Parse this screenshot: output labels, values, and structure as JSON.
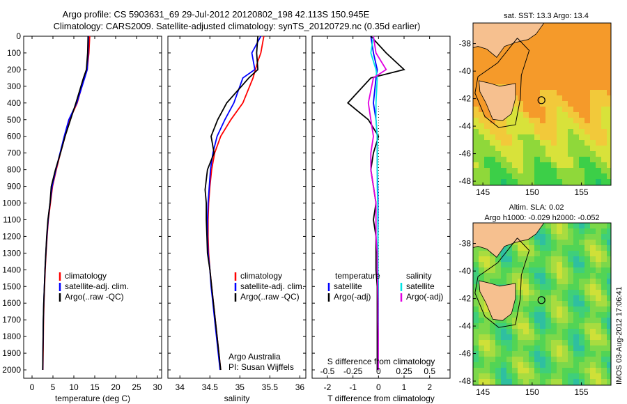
{
  "title_line1": "Argo profile: CS 5903631_69 29-Jul-2012 20120802_198 42.113S 150.945E",
  "title_line2": "Climatology: CARS2009. Satellite-adjusted climatology: synTS_20120729.nc (0.35d earlier)",
  "map_top_title": "sat. SST: 13.3 Argo: 13.4",
  "map_bottom_title1": "Altim. SLA: 0.02",
  "map_bottom_title2": "Argo h1000: -0.029 h2000: -0.052",
  "vertical_stamp": "IMOS 03-Aug-2012 17:06:41",
  "credit_line1": "Argo Australia",
  "credit_line2": "PI: Susan Wijffels",
  "colors": {
    "climatology": "#ff0000",
    "satellite": "#0000ff",
    "argo": "#000000",
    "sal_sat": "#00e5e5",
    "sal_argo": "#e000e0",
    "land": "#f6c08f"
  },
  "chart_data": [
    {
      "id": "temperature",
      "type": "line",
      "xlabel": "temperature (deg C)",
      "xlim": [
        -2,
        31
      ],
      "ylim": [
        2050,
        0
      ],
      "xticks": [
        0,
        5,
        10,
        15,
        20,
        25,
        30
      ],
      "yticks": [
        0,
        100,
        200,
        300,
        400,
        500,
        600,
        700,
        800,
        900,
        1000,
        1100,
        1200,
        1300,
        1400,
        1500,
        1600,
        1700,
        1800,
        1900,
        2000
      ],
      "legend": [
        "climatology",
        "satellite-adj. clim.",
        "Argo(..raw -QC)"
      ],
      "series": [
        {
          "name": "climatology",
          "color": "#ff0000",
          "x": [
            13.8,
            13.6,
            13.2,
            12.5,
            10.8,
            9.0,
            7.9,
            6.8,
            5.8,
            4.9,
            4.4,
            3.9,
            3.6,
            3.35,
            3.15,
            3.0,
            2.85,
            2.75,
            2.7,
            2.65,
            2.6
          ],
          "y": [
            0,
            100,
            200,
            250,
            400,
            500,
            600,
            700,
            800,
            900,
            1000,
            1100,
            1200,
            1300,
            1400,
            1500,
            1600,
            1700,
            1800,
            1900,
            2000
          ]
        },
        {
          "name": "satellite-adj. clim.",
          "color": "#0000ff",
          "x": [
            13.5,
            13.4,
            13.2,
            12.6,
            10.7,
            8.8,
            7.7,
            6.7,
            5.7,
            4.8,
            4.3,
            3.85,
            3.55,
            3.3,
            3.1,
            2.95,
            2.8,
            2.7,
            2.65,
            2.6,
            2.55
          ],
          "y": [
            0,
            100,
            200,
            250,
            400,
            500,
            600,
            700,
            800,
            900,
            1000,
            1100,
            1200,
            1300,
            1400,
            1500,
            1600,
            1700,
            1800,
            1900,
            2000
          ]
        },
        {
          "name": "Argo(..raw -QC)",
          "color": "#000000",
          "x": [
            13.4,
            13.3,
            13.0,
            12.3,
            10.5,
            9.2,
            7.9,
            6.8,
            5.6,
            4.6,
            4.3,
            3.8,
            3.5,
            3.3,
            3.1,
            2.95,
            2.8,
            2.7,
            2.65,
            2.6,
            2.55
          ],
          "y": [
            0,
            100,
            200,
            250,
            400,
            500,
            600,
            700,
            800,
            900,
            1000,
            1100,
            1200,
            1300,
            1400,
            1500,
            1600,
            1700,
            1800,
            1900,
            2000
          ]
        }
      ]
    },
    {
      "id": "salinity",
      "type": "line",
      "xlabel": "salinity",
      "xlim": [
        33.8,
        36.1
      ],
      "ylim": [
        2050,
        0
      ],
      "xticks": [
        34,
        34.5,
        35,
        35.5,
        36
      ],
      "xticklabels": [
        "34",
        "34.5",
        "35",
        "35.5",
        "36"
      ],
      "legend": [
        "climatology",
        "satellite-adj. clim.",
        "Argo(..raw -QC)"
      ],
      "series": [
        {
          "name": "climatology",
          "color": "#ff0000",
          "x": [
            35.4,
            35.35,
            35.3,
            35.22,
            35.05,
            34.85,
            34.68,
            34.58,
            34.53,
            34.5,
            34.48,
            34.47,
            34.47,
            34.48,
            34.5,
            34.53,
            34.56,
            34.59,
            34.62,
            34.65,
            34.68
          ],
          "y": [
            0,
            100,
            150,
            250,
            400,
            500,
            600,
            700,
            800,
            900,
            1000,
            1100,
            1200,
            1300,
            1400,
            1500,
            1600,
            1700,
            1800,
            1900,
            2000
          ]
        },
        {
          "name": "satellite-adj. clim.",
          "color": "#0000ff",
          "x": [
            35.35,
            35.2,
            35.25,
            35.05,
            34.9,
            34.75,
            34.62,
            34.55,
            34.51,
            34.49,
            34.47,
            34.46,
            34.46,
            34.47,
            34.5,
            34.52,
            34.55,
            34.58,
            34.61,
            34.64,
            34.67
          ],
          "y": [
            0,
            100,
            200,
            250,
            400,
            500,
            600,
            700,
            800,
            900,
            1000,
            1100,
            1200,
            1300,
            1400,
            1500,
            1600,
            1700,
            1800,
            1900,
            2000
          ]
        },
        {
          "name": "Argo(..raw -QC)",
          "color": "#000000",
          "x": [
            35.3,
            35.28,
            35.3,
            35.15,
            34.78,
            34.63,
            34.52,
            34.57,
            34.46,
            34.42,
            34.44,
            34.44,
            34.45,
            34.46,
            34.5,
            34.53,
            34.56,
            34.59,
            34.62,
            34.65,
            34.68
          ],
          "y": [
            0,
            100,
            200,
            250,
            400,
            500,
            600,
            700,
            800,
            920,
            1000,
            1100,
            1200,
            1300,
            1400,
            1500,
            1600,
            1700,
            1800,
            1900,
            2000
          ]
        }
      ]
    },
    {
      "id": "difference",
      "type": "line",
      "xlabel": "T difference from climatology",
      "xlabel2": "S difference from climatology",
      "xlim": [
        -2.6,
        2.8
      ],
      "ylim": [
        2050,
        0
      ],
      "xticks": [
        -2,
        -1,
        0,
        1,
        2
      ],
      "xticks2": [
        -0.5,
        -0.25,
        0,
        0.25,
        0.5
      ],
      "xticklabels2": [
        "-0.5",
        "-0.25",
        "0",
        "0.25",
        "0.5"
      ],
      "legend_headers": [
        "temperature",
        "salinity"
      ],
      "legend": [
        "satellite",
        "Argo(-adj)",
        "satellite",
        "Argo(-adj)"
      ],
      "series": [
        {
          "name": "satellite",
          "color": "#0000ff",
          "x": [
            -0.3,
            -0.2,
            -0.05,
            -0.1,
            -0.2,
            -0.1,
            -0.05,
            -0.05,
            -0.05,
            -0.03,
            -0.02,
            -0.02,
            -0.02,
            -0.02,
            -0.02,
            -0.01,
            -0.01,
            -0.01,
            -0.01,
            -0.01,
            -0.01
          ],
          "y": [
            0,
            100,
            200,
            250,
            400,
            500,
            600,
            700,
            800,
            900,
            1000,
            1100,
            1200,
            1300,
            1400,
            1500,
            1600,
            1700,
            1800,
            1900,
            2000
          ]
        },
        {
          "name": "Argo(-adj)",
          "color": "#000000",
          "x": [
            -0.3,
            0.3,
            1.0,
            -0.3,
            -1.2,
            -0.4,
            0.0,
            -0.2,
            -0.3,
            -0.2,
            -0.1,
            -0.2,
            -0.1,
            -0.1,
            -0.1,
            -0.05,
            -0.05,
            -0.05,
            -0.05,
            -0.05,
            -0.05
          ],
          "y": [
            0,
            100,
            200,
            250,
            400,
            500,
            600,
            700,
            800,
            900,
            1000,
            1100,
            1200,
            1300,
            1400,
            1500,
            1600,
            1700,
            1800,
            1900,
            2000
          ]
        },
        {
          "name": "satellite",
          "color": "#00e5e5",
          "x": [
            -0.2,
            -0.3,
            -0.1,
            -0.05,
            -0.1,
            -0.1,
            -0.05,
            -0.05,
            -0.05,
            -0.05,
            -0.03,
            -0.03,
            -0.02,
            -0.02,
            -0.02,
            -0.01,
            -0.01,
            -0.01,
            -0.01,
            -0.01,
            -0.01
          ],
          "y": [
            0,
            100,
            200,
            250,
            400,
            500,
            600,
            700,
            800,
            900,
            1000,
            1100,
            1200,
            1300,
            1400,
            1500,
            1600,
            1700,
            1800,
            1900,
            2000
          ]
        },
        {
          "name": "Argo(-adj)",
          "color": "#e000e0",
          "x": [
            -0.2,
            -0.1,
            0.3,
            -0.2,
            -0.4,
            -0.3,
            -0.2,
            -0.3,
            -0.3,
            -0.2,
            -0.1,
            -0.1,
            -0.1,
            -0.05,
            -0.05,
            -0.03,
            -0.02,
            -0.02,
            -0.01,
            -0.01,
            -0.01
          ],
          "y": [
            0,
            100,
            200,
            250,
            400,
            500,
            600,
            700,
            800,
            900,
            1000,
            1100,
            1200,
            1300,
            1400,
            1500,
            1600,
            1700,
            1800,
            1900,
            2000
          ]
        }
      ]
    },
    {
      "id": "map_sst",
      "type": "heatmap",
      "xlim": [
        144,
        158
      ],
      "ylim": [
        -48.3,
        -36.5
      ],
      "xticks": [
        145,
        150,
        155
      ],
      "yticks": [
        -38,
        -40,
        -42,
        -44,
        -46,
        -48
      ],
      "profile_lon": 150.945,
      "profile_lat": -42.113
    },
    {
      "id": "map_sla",
      "type": "heatmap",
      "xlim": [
        144,
        158
      ],
      "ylim": [
        -48.3,
        -36.5
      ],
      "xticks": [
        145,
        150,
        155
      ],
      "yticks": [
        -38,
        -40,
        -42,
        -44,
        -46,
        -48
      ],
      "profile_lon": 150.945,
      "profile_lat": -42.113
    }
  ]
}
